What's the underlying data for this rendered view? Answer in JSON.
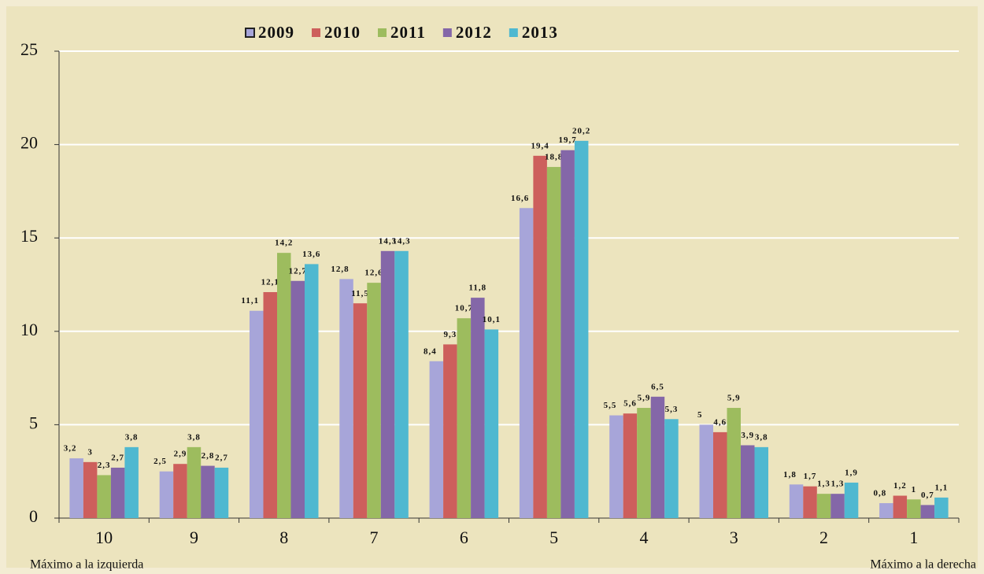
{
  "chart_data": {
    "type": "bar",
    "categories": [
      "10",
      "9",
      "8",
      "7",
      "6",
      "5",
      "4",
      "3",
      "2",
      "1"
    ],
    "series": [
      {
        "name": "2009",
        "color": "#a7a5d9",
        "values": [
          3.2,
          2.5,
          11.1,
          12.8,
          8.4,
          16.6,
          5.5,
          5,
          1.8,
          0.8
        ],
        "value_labels": [
          "3,2",
          "2,5",
          "11,1",
          "12,8",
          "8,4",
          "16,6",
          "5,5",
          "5",
          "1,8",
          "0,8"
        ]
      },
      {
        "name": "2010",
        "color": "#cd5f5c",
        "values": [
          3,
          2.9,
          12.1,
          11.5,
          9.3,
          19.4,
          5.6,
          4.6,
          1.7,
          1.2
        ],
        "value_labels": [
          "3",
          "2,9",
          "12,1",
          "11,5",
          "9,3",
          "19,4",
          "5,6",
          "4,6",
          "1,7",
          "1,2"
        ]
      },
      {
        "name": "2011",
        "color": "#9dbc5e",
        "values": [
          2.3,
          3.8,
          14.2,
          12.6,
          10.7,
          18.8,
          5.9,
          5.9,
          1.3,
          1
        ],
        "value_labels": [
          "2,3",
          "3,8",
          "14,2",
          "12,6",
          "10,7",
          "18,8",
          "5,9",
          "5,9",
          "1,3",
          "1"
        ]
      },
      {
        "name": "2012",
        "color": "#8467a8",
        "values": [
          2.7,
          2.8,
          12.7,
          14.3,
          11.8,
          19.7,
          6.5,
          3.9,
          1.3,
          0.7
        ],
        "value_labels": [
          "2,7",
          "2,8",
          "12,7",
          "14,3",
          "11,8",
          "19,7",
          "6,5",
          "3,9",
          "1,3",
          "0,7"
        ]
      },
      {
        "name": "2013",
        "color": "#4fb8d0",
        "values": [
          3.8,
          2.7,
          13.6,
          14.3,
          10.1,
          20.2,
          5.3,
          3.8,
          1.9,
          1.1
        ],
        "value_labels": [
          "3,8",
          "2,7",
          "13,6",
          "14,3",
          "10,1",
          "20,2",
          "5,3",
          "3,8",
          "1,9",
          "1,1"
        ]
      }
    ],
    "ylim": [
      0,
      25
    ],
    "yticks": [
      0,
      5,
      10,
      15,
      20,
      25
    ],
    "grid": true,
    "legend": "top",
    "annotations": [
      "Máximo a la izquierda",
      "Máximo a la derecha"
    ]
  }
}
